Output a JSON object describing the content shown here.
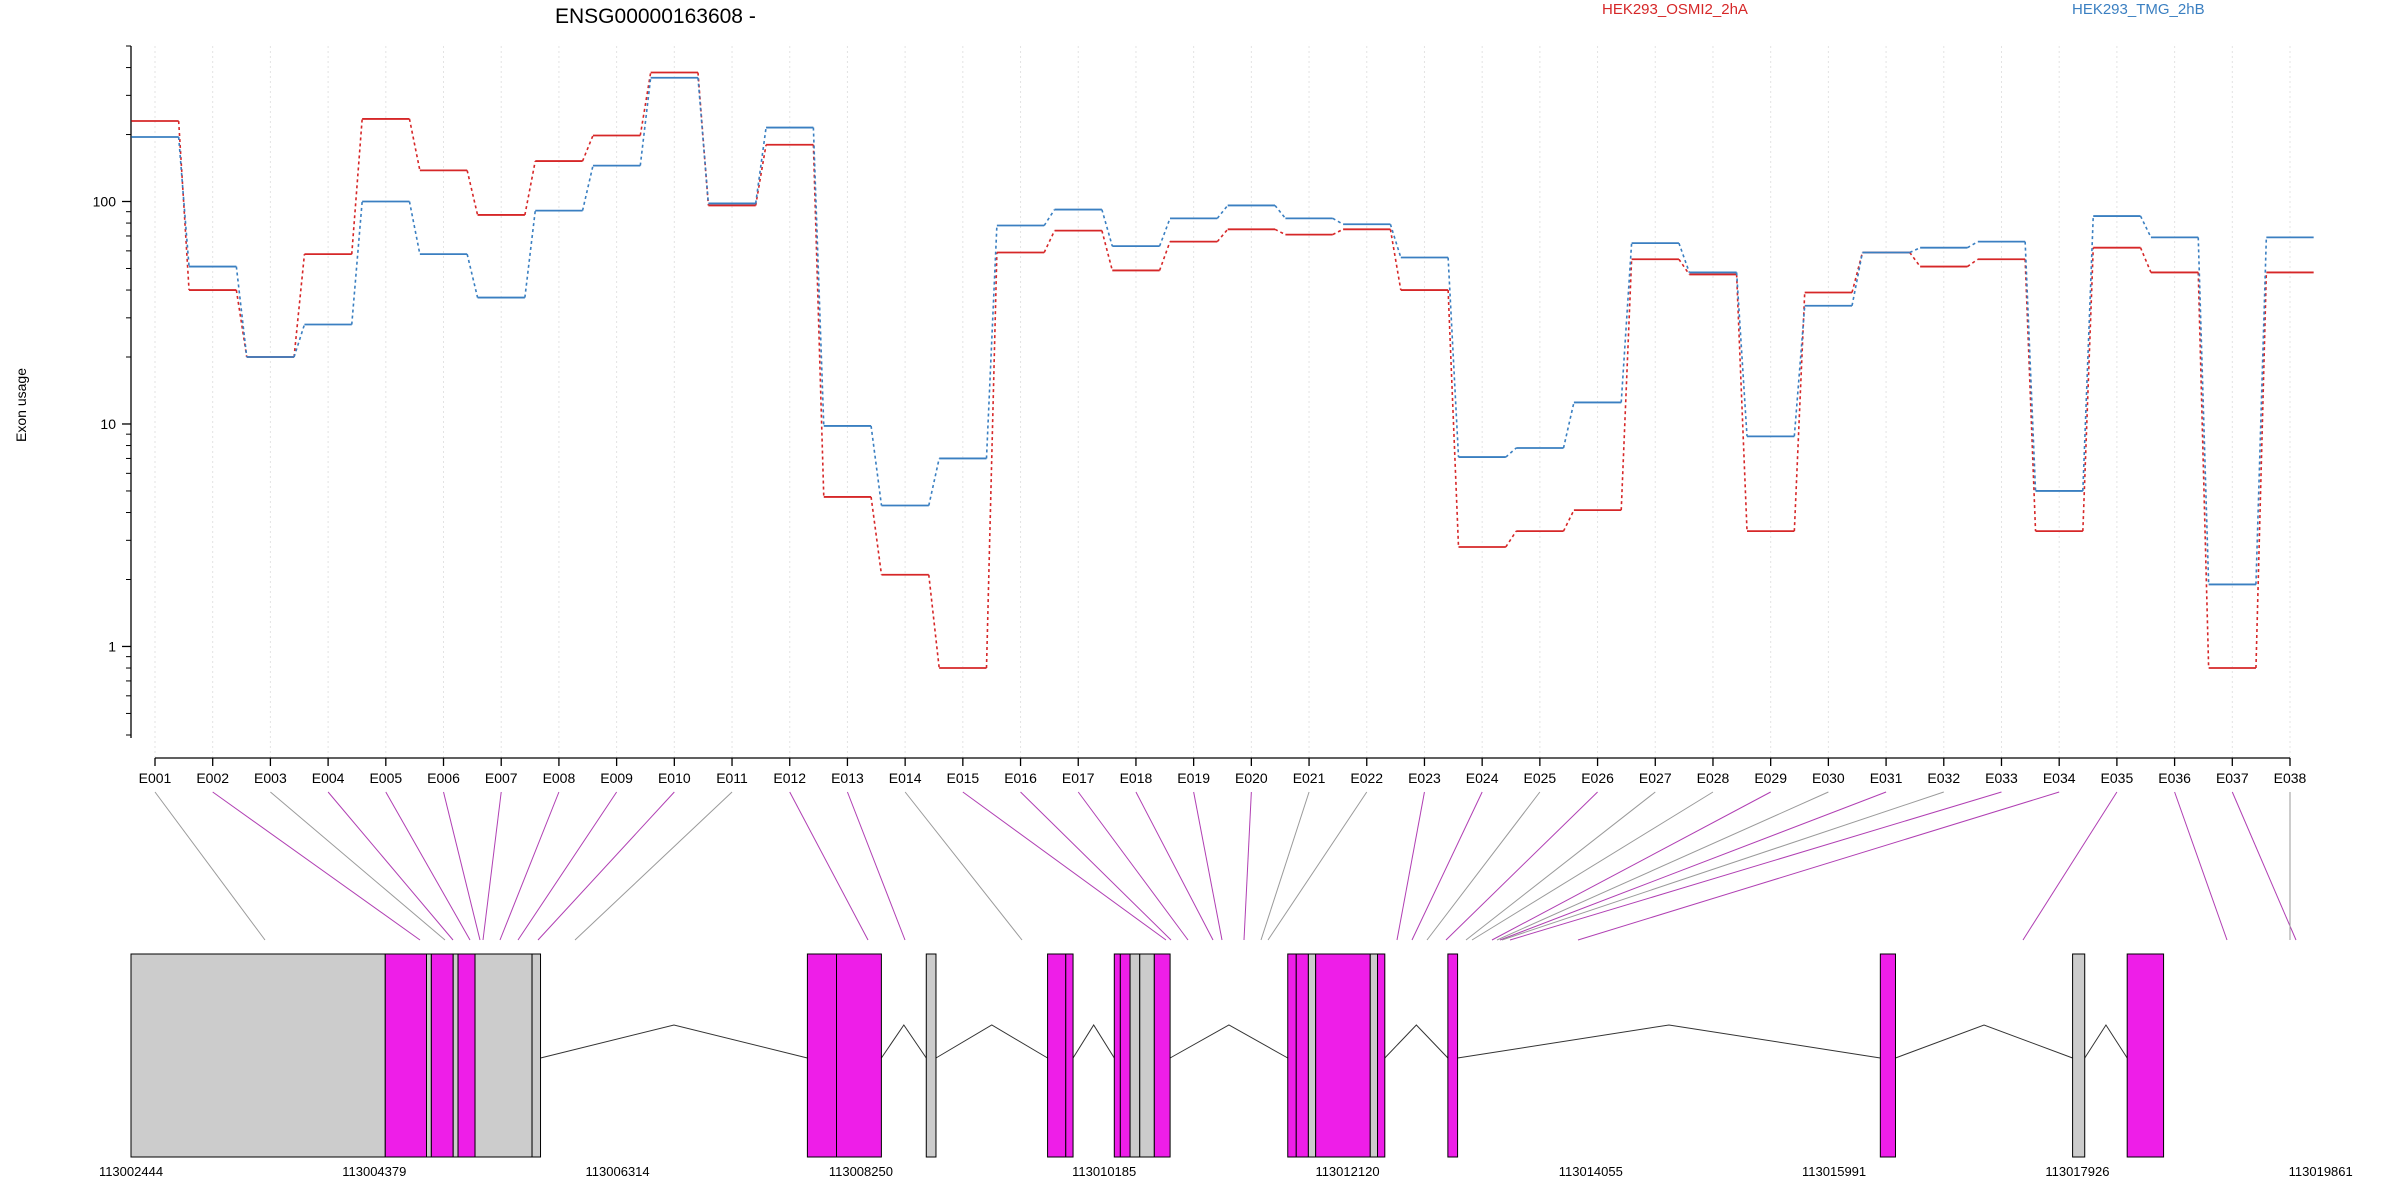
{
  "chart_data": {
    "type": "line",
    "title": "ENSG00000163608 -",
    "ylabel": "Exon usage",
    "xlabel": "",
    "y_scale": "log",
    "ylim": [
      0.4,
      500
    ],
    "y_ticks": [
      1,
      10,
      100
    ],
    "y_tick_labels": [
      "1",
      "10",
      "100"
    ],
    "grid": "vertical dotted lines at each exon",
    "legend_position": "top",
    "categories": [
      "E001",
      "E002",
      "E003",
      "E004",
      "E005",
      "E006",
      "E007",
      "E008",
      "E009",
      "E010",
      "E011",
      "E012",
      "E013",
      "E014",
      "E015",
      "E016",
      "E017",
      "E018",
      "E019",
      "E020",
      "E021",
      "E022",
      "E023",
      "E024",
      "E025",
      "E026",
      "E027",
      "E028",
      "E029",
      "E030",
      "E031",
      "E032",
      "E033",
      "E034",
      "E035",
      "E036",
      "E037",
      "E038"
    ],
    "series": [
      {
        "name": "HEK293_OSMI2_2hA",
        "color": "#d62728",
        "values": [
          230,
          40,
          20,
          58,
          235,
          138,
          87,
          152,
          198,
          380,
          96,
          180,
          4.7,
          2.1,
          0.8,
          59,
          74,
          49,
          66,
          75,
          71,
          75,
          40,
          2.8,
          3.3,
          4.1,
          55,
          47,
          3.3,
          39,
          59,
          51,
          55,
          3.3,
          62,
          48,
          0.8,
          48
        ]
      },
      {
        "name": "HEK293_TMG_2hB",
        "color": "#3a7fc1",
        "values": [
          195,
          51,
          20,
          28,
          100,
          58,
          37,
          91,
          145,
          360,
          98,
          215,
          9.8,
          4.3,
          7.0,
          78,
          92,
          63,
          84,
          96,
          84,
          79,
          56,
          7.1,
          7.8,
          12.5,
          65,
          48,
          8.8,
          34,
          59,
          62,
          66,
          5.0,
          86,
          69,
          1.9,
          69
        ]
      }
    ],
    "gene_model": {
      "coordinate_labels": [
        "113002444",
        "113004379",
        "113006314",
        "113008250",
        "113010185",
        "113012120",
        "113014055",
        "113015991",
        "113017926",
        "113019861"
      ],
      "exon_color_dynamic": "#ee1ee8",
      "exon_color_static": "#cccccc"
    }
  }
}
